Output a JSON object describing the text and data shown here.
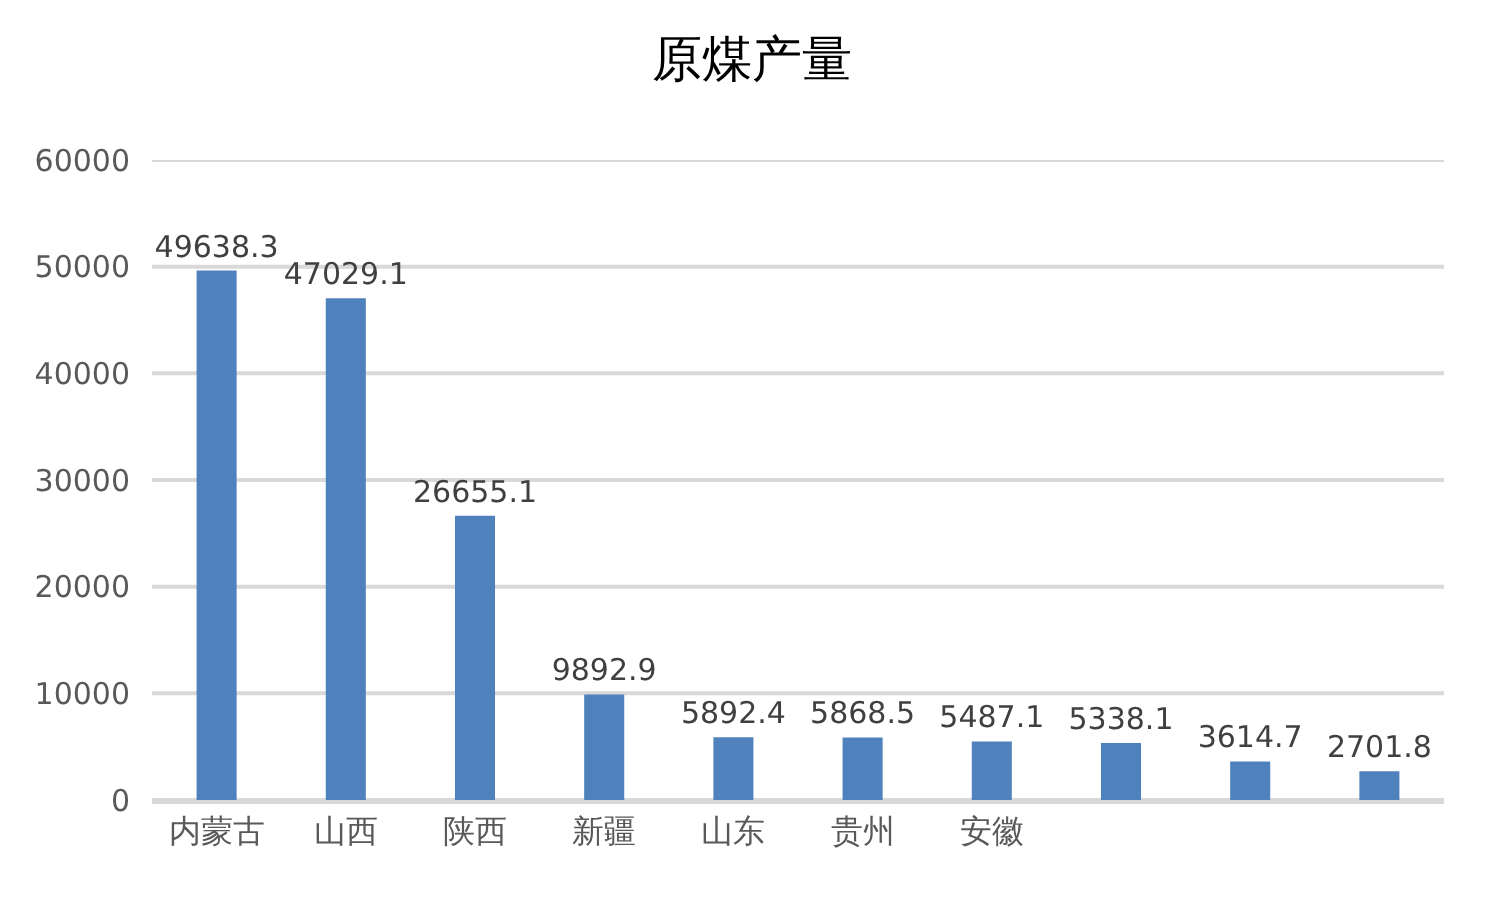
{
  "chart_data": {
    "type": "bar",
    "title": "原煤产量",
    "categories": [
      "内蒙古",
      "山西",
      "陕西",
      "新疆",
      "山东",
      "贵州",
      "安徽",
      null,
      null,
      null
    ],
    "values": [
      49638.3,
      47029.1,
      26655.1,
      9892.9,
      5892.4,
      5868.5,
      5487.1,
      5338.1,
      3614.7,
      2701.8
    ],
    "color": "#4f81bd",
    "ylim": [
      0,
      60000
    ],
    "yticks": [
      0,
      10000,
      20000,
      30000,
      40000,
      50000,
      60000
    ],
    "grid": "y",
    "data_labels": true
  }
}
